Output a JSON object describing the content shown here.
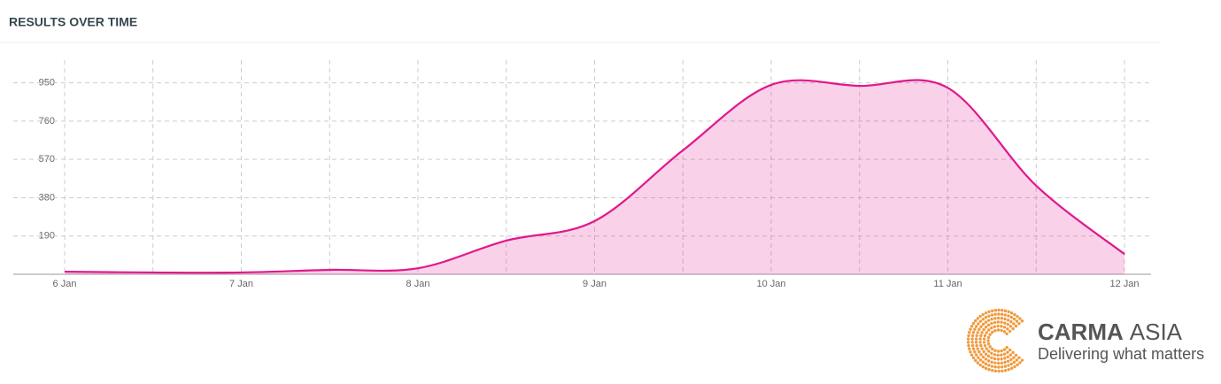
{
  "chart_data": {
    "type": "area",
    "title": "RESULTS OVER TIME",
    "categories": [
      "6 Jan",
      null,
      "7 Jan",
      null,
      "8 Jan",
      null,
      "9 Jan",
      null,
      "10 Jan",
      null,
      "11 Jan",
      null,
      "12 Jan"
    ],
    "values": [
      13,
      9,
      9,
      22,
      30,
      167,
      264,
      615,
      940,
      935,
      925,
      440,
      100
    ],
    "color": "#e0188c",
    "ylim": [
      0,
      1045
    ],
    "yticks": [
      190,
      380,
      570,
      760,
      950
    ],
    "grid": true
  },
  "logo": {
    "name_bold": "CARMA",
    "name_light": "ASIA",
    "tagline": "Delivering what matters"
  }
}
